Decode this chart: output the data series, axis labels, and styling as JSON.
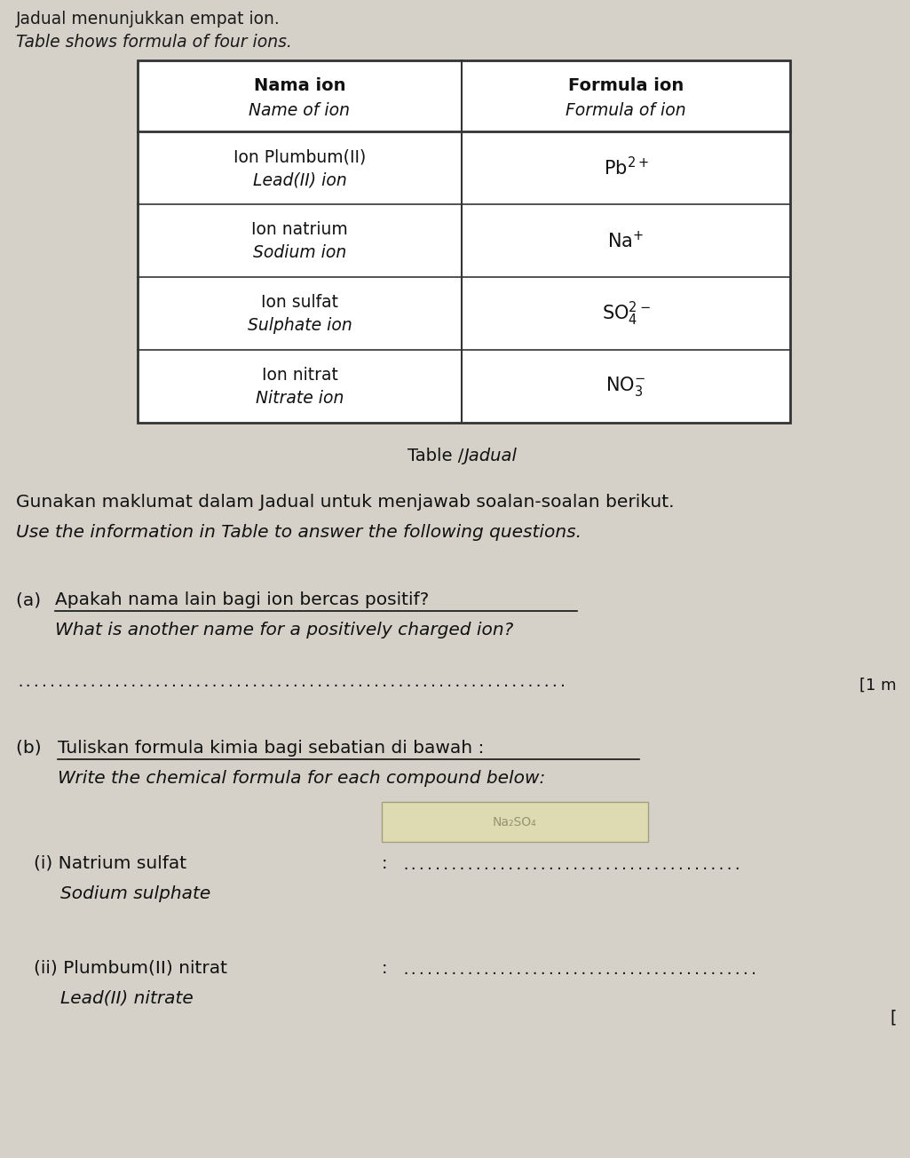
{
  "bg_color": "#ccc9c0",
  "paper_color": "#d5d1c8",
  "title_line1": "Jadual menunjukkan empat ion.",
  "title_line2": "Table shows formula of four ions.",
  "table_caption": "Table /Jadual",
  "intro_line1": "Gunakan maklumat dalam Jadual untuk menjawab soalan-soalan berikut.",
  "intro_line2": "Use the information in Table to answer the following questions.",
  "mark_a": "[1 m",
  "mark_b": "["
}
